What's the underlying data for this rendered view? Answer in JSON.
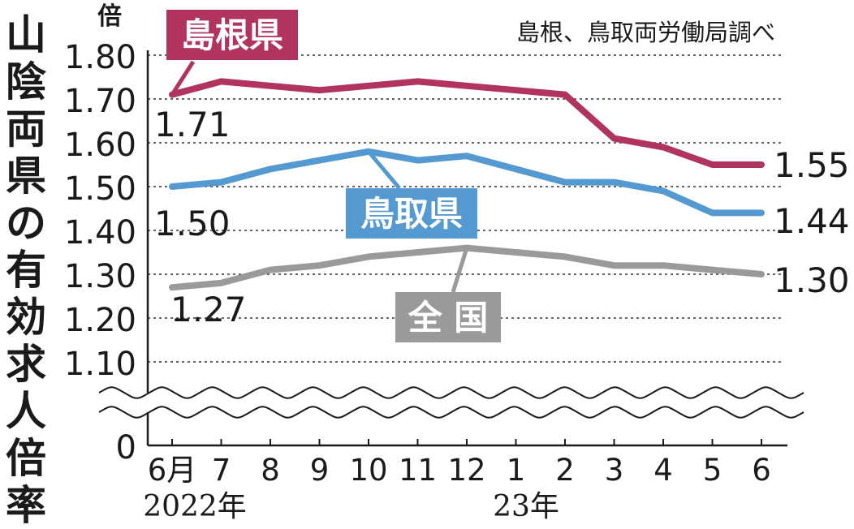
{
  "title": "山陰両県の有効求人倍率",
  "source": "島根、鳥取両労働局調べ",
  "chart_data": {
    "type": "line",
    "y_unit": "倍",
    "categories": [
      "6月",
      "7",
      "8",
      "9",
      "10",
      "11",
      "12",
      "1",
      "2",
      "3",
      "4",
      "5",
      "6"
    ],
    "year_labels": [
      "2022年",
      "23年"
    ],
    "ylim": [
      1.1,
      1.8
    ],
    "y_ticks": [
      "1.80",
      "1.70",
      "1.60",
      "1.50",
      "1.40",
      "1.30",
      "1.20",
      "1.10"
    ],
    "y_zero_label": "0",
    "axis_break": true,
    "grid": true,
    "series": [
      {
        "name": "島根県",
        "color": "#b0345f",
        "values": [
          1.71,
          1.74,
          1.73,
          1.72,
          1.73,
          1.74,
          1.73,
          1.72,
          1.71,
          1.61,
          1.59,
          1.55,
          1.55
        ],
        "start_label": "1.71",
        "end_label": "1.55"
      },
      {
        "name": "鳥取県",
        "color": "#5499d0",
        "values": [
          1.5,
          1.51,
          1.54,
          1.56,
          1.58,
          1.56,
          1.57,
          1.54,
          1.51,
          1.51,
          1.49,
          1.44,
          1.44
        ],
        "start_label": "1.50",
        "end_label": "1.44"
      },
      {
        "name": "全 国",
        "color": "#9a9a9a",
        "values": [
          1.27,
          1.28,
          1.31,
          1.32,
          1.34,
          1.35,
          1.36,
          1.35,
          1.34,
          1.32,
          1.32,
          1.31,
          1.3
        ],
        "start_label": "1.27",
        "end_label": "1.30"
      }
    ]
  }
}
